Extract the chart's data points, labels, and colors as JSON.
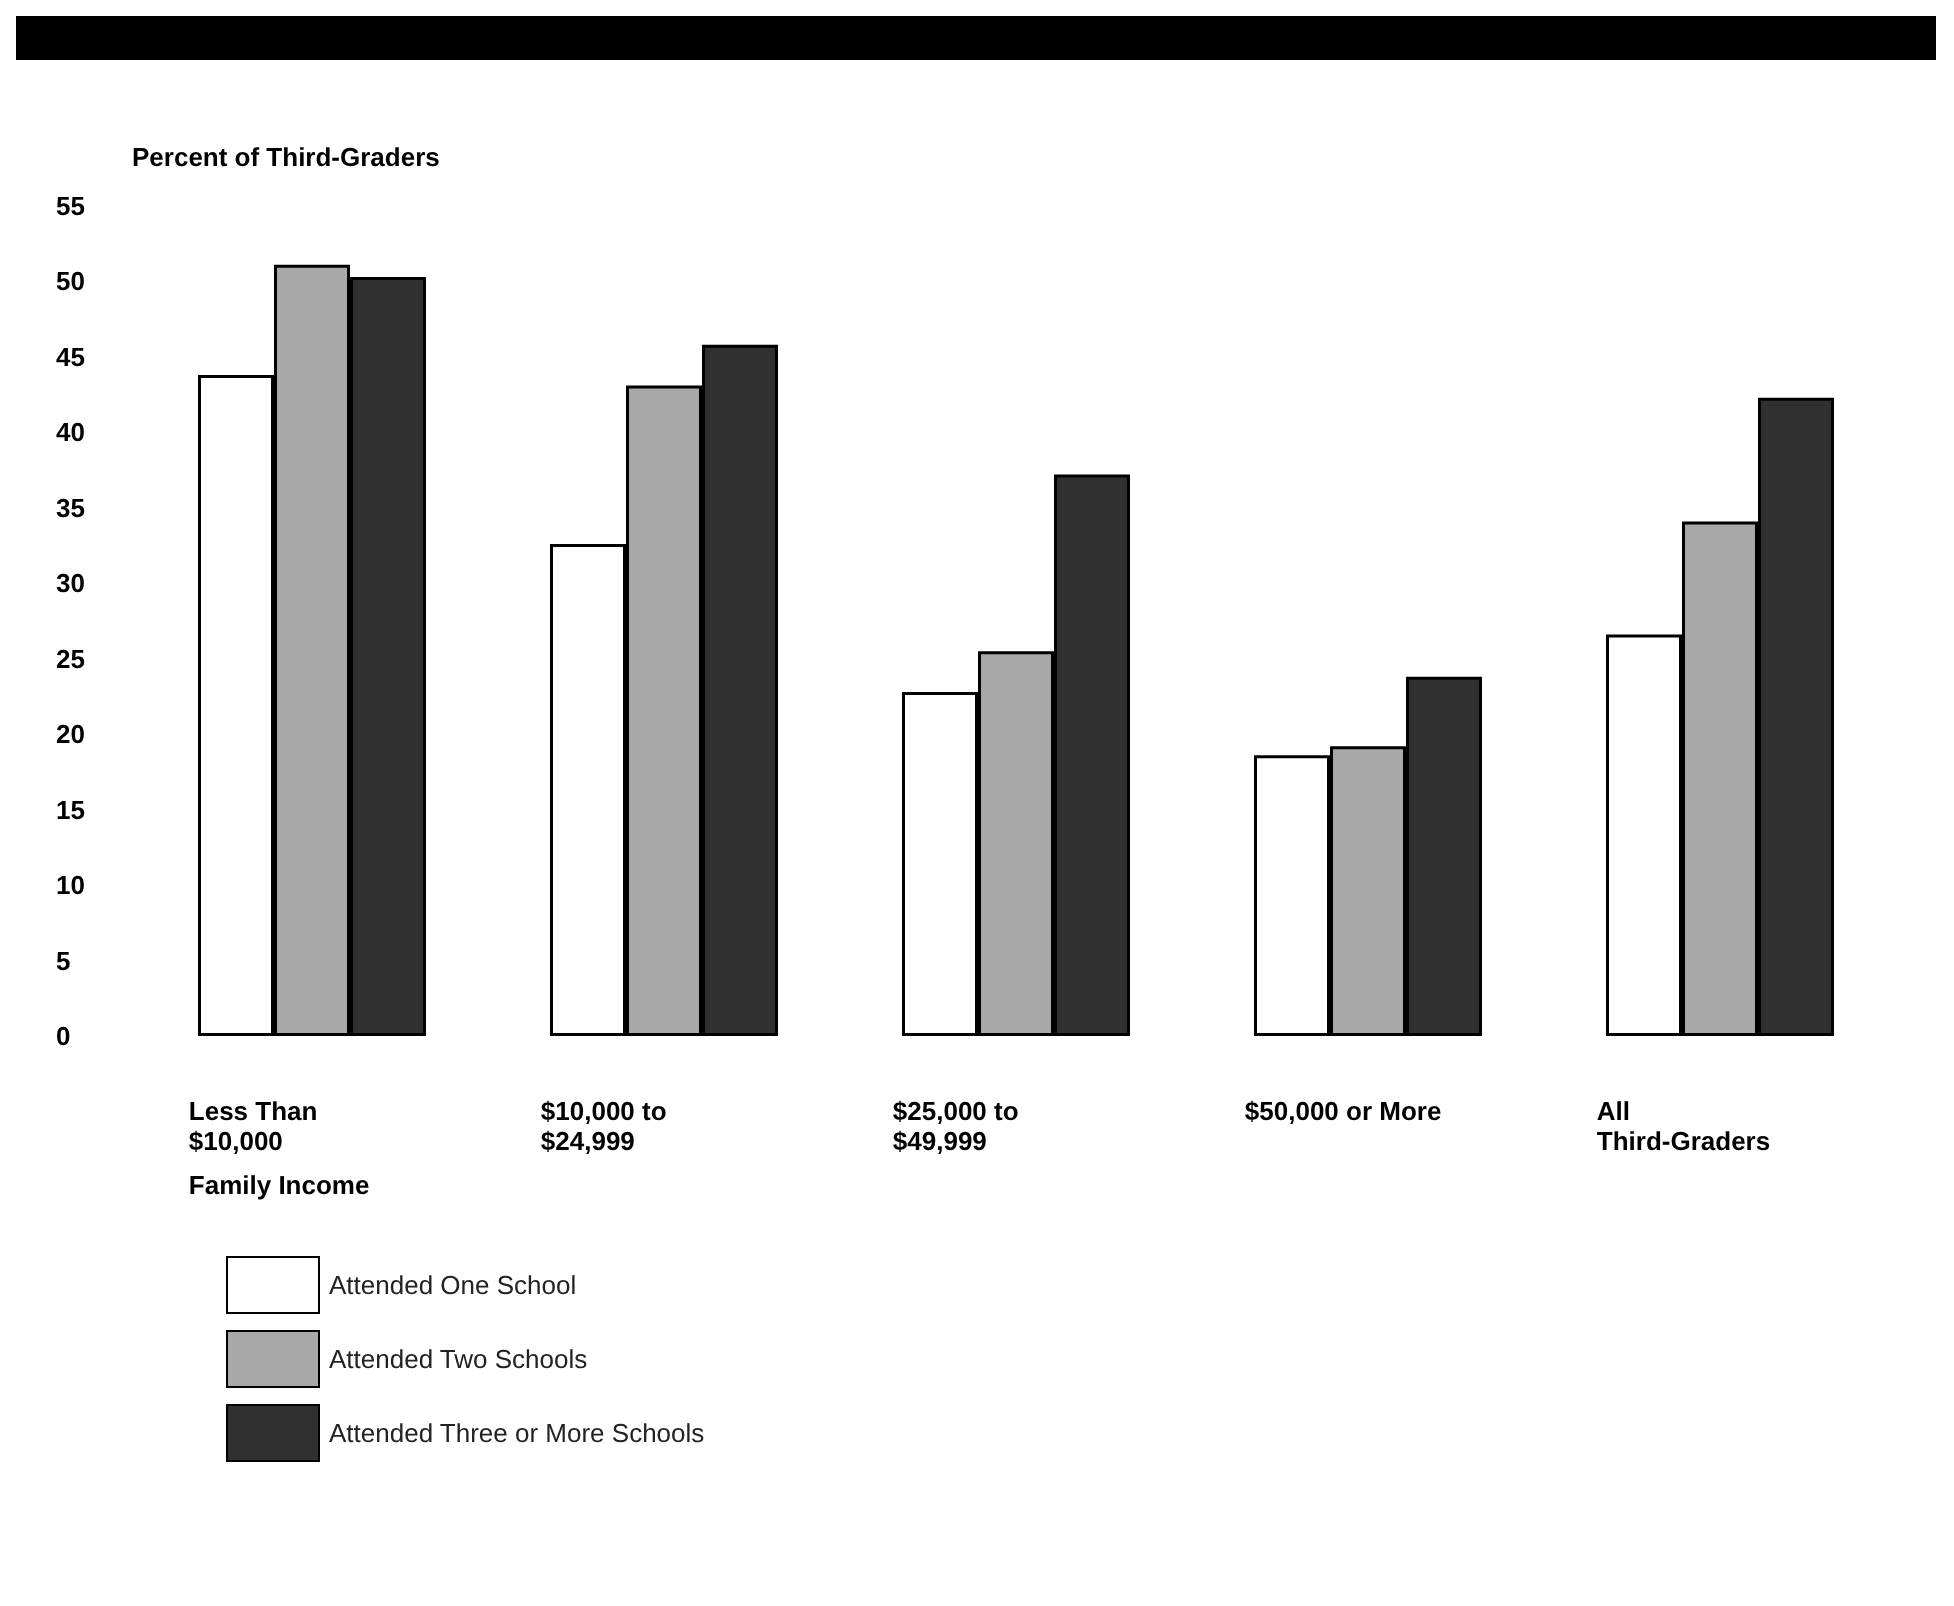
{
  "chart_data": {
    "type": "bar",
    "ylabel": "Percent of Third-Graders",
    "xlabel": "Family Income",
    "categories": [
      "Less Than\n$10,000",
      "$10,000 to\n$24,999",
      "$25,000 to\n$49,999",
      "$50,000 or More",
      "All\nThird-Graders"
    ],
    "series": [
      {
        "name": "Attended One School",
        "color": "#ffffff",
        "values": [
          43.8,
          32.6,
          22.8,
          18.6,
          26.6
        ]
      },
      {
        "name": "Attended Two Schools",
        "color": "#a8a8a8",
        "values": [
          51.1,
          43.1,
          25.5,
          19.2,
          34.1
        ]
      },
      {
        "name": "Attended Three or More Schools",
        "color": "#303030",
        "values": [
          50.3,
          45.8,
          37.2,
          23.8,
          42.3
        ]
      }
    ],
    "ylim": [
      0,
      55
    ],
    "yticks": [
      0,
      5,
      10,
      15,
      20,
      25,
      30,
      35,
      40,
      45,
      50,
      55
    ],
    "grid": false,
    "legend": "bottom left"
  }
}
